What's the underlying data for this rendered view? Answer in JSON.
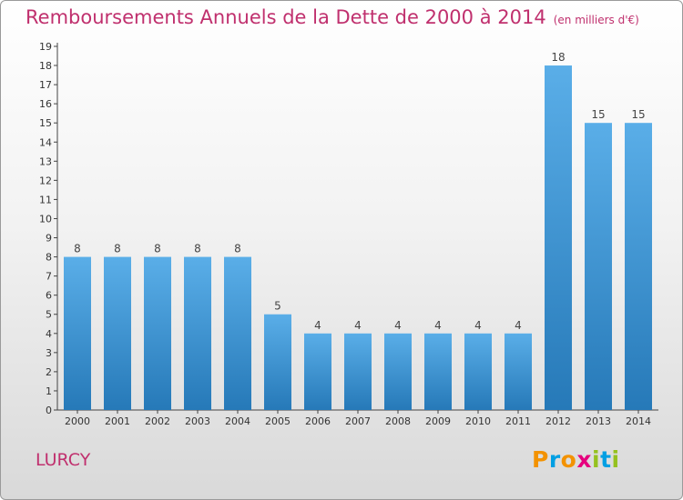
{
  "title": {
    "main": "Remboursements Annuels de la Dette de 2000 à 2014",
    "unit": "(en milliers d'€)"
  },
  "commune": "LURCY",
  "logo": {
    "text": "Proxiti",
    "letters": [
      {
        "char": "P",
        "color": "#f39200"
      },
      {
        "char": "r",
        "color": "#009fe3"
      },
      {
        "char": "o",
        "color": "#f39200"
      },
      {
        "char": "x",
        "color": "#e6007e"
      },
      {
        "char": "i",
        "color": "#95c11f"
      },
      {
        "char": "t",
        "color": "#009fe3"
      },
      {
        "char": "i",
        "color": "#95c11f"
      }
    ]
  },
  "colors": {
    "title": "#c0306e",
    "bar_top": "#5aaee8",
    "bar_bottom": "#2679b8",
    "axis": "#444444"
  },
  "chart_data": {
    "type": "bar",
    "categories": [
      "2000",
      "2001",
      "2002",
      "2003",
      "2004",
      "2005",
      "2006",
      "2007",
      "2008",
      "2009",
      "2010",
      "2011",
      "2012",
      "2013",
      "2014"
    ],
    "values": [
      8,
      8,
      8,
      8,
      8,
      5,
      4,
      4,
      4,
      4,
      4,
      4,
      18,
      15,
      15
    ],
    "ylim": [
      0,
      19
    ],
    "yticks": [
      "0",
      "1",
      "2",
      "3",
      "4",
      "5",
      "6",
      "7",
      "8",
      "9",
      "10",
      "11",
      "12",
      "13",
      "14",
      "15",
      "16",
      "17",
      "18",
      "19"
    ],
    "xlabel": "",
    "ylabel": "",
    "grid": false,
    "legend": "none"
  }
}
